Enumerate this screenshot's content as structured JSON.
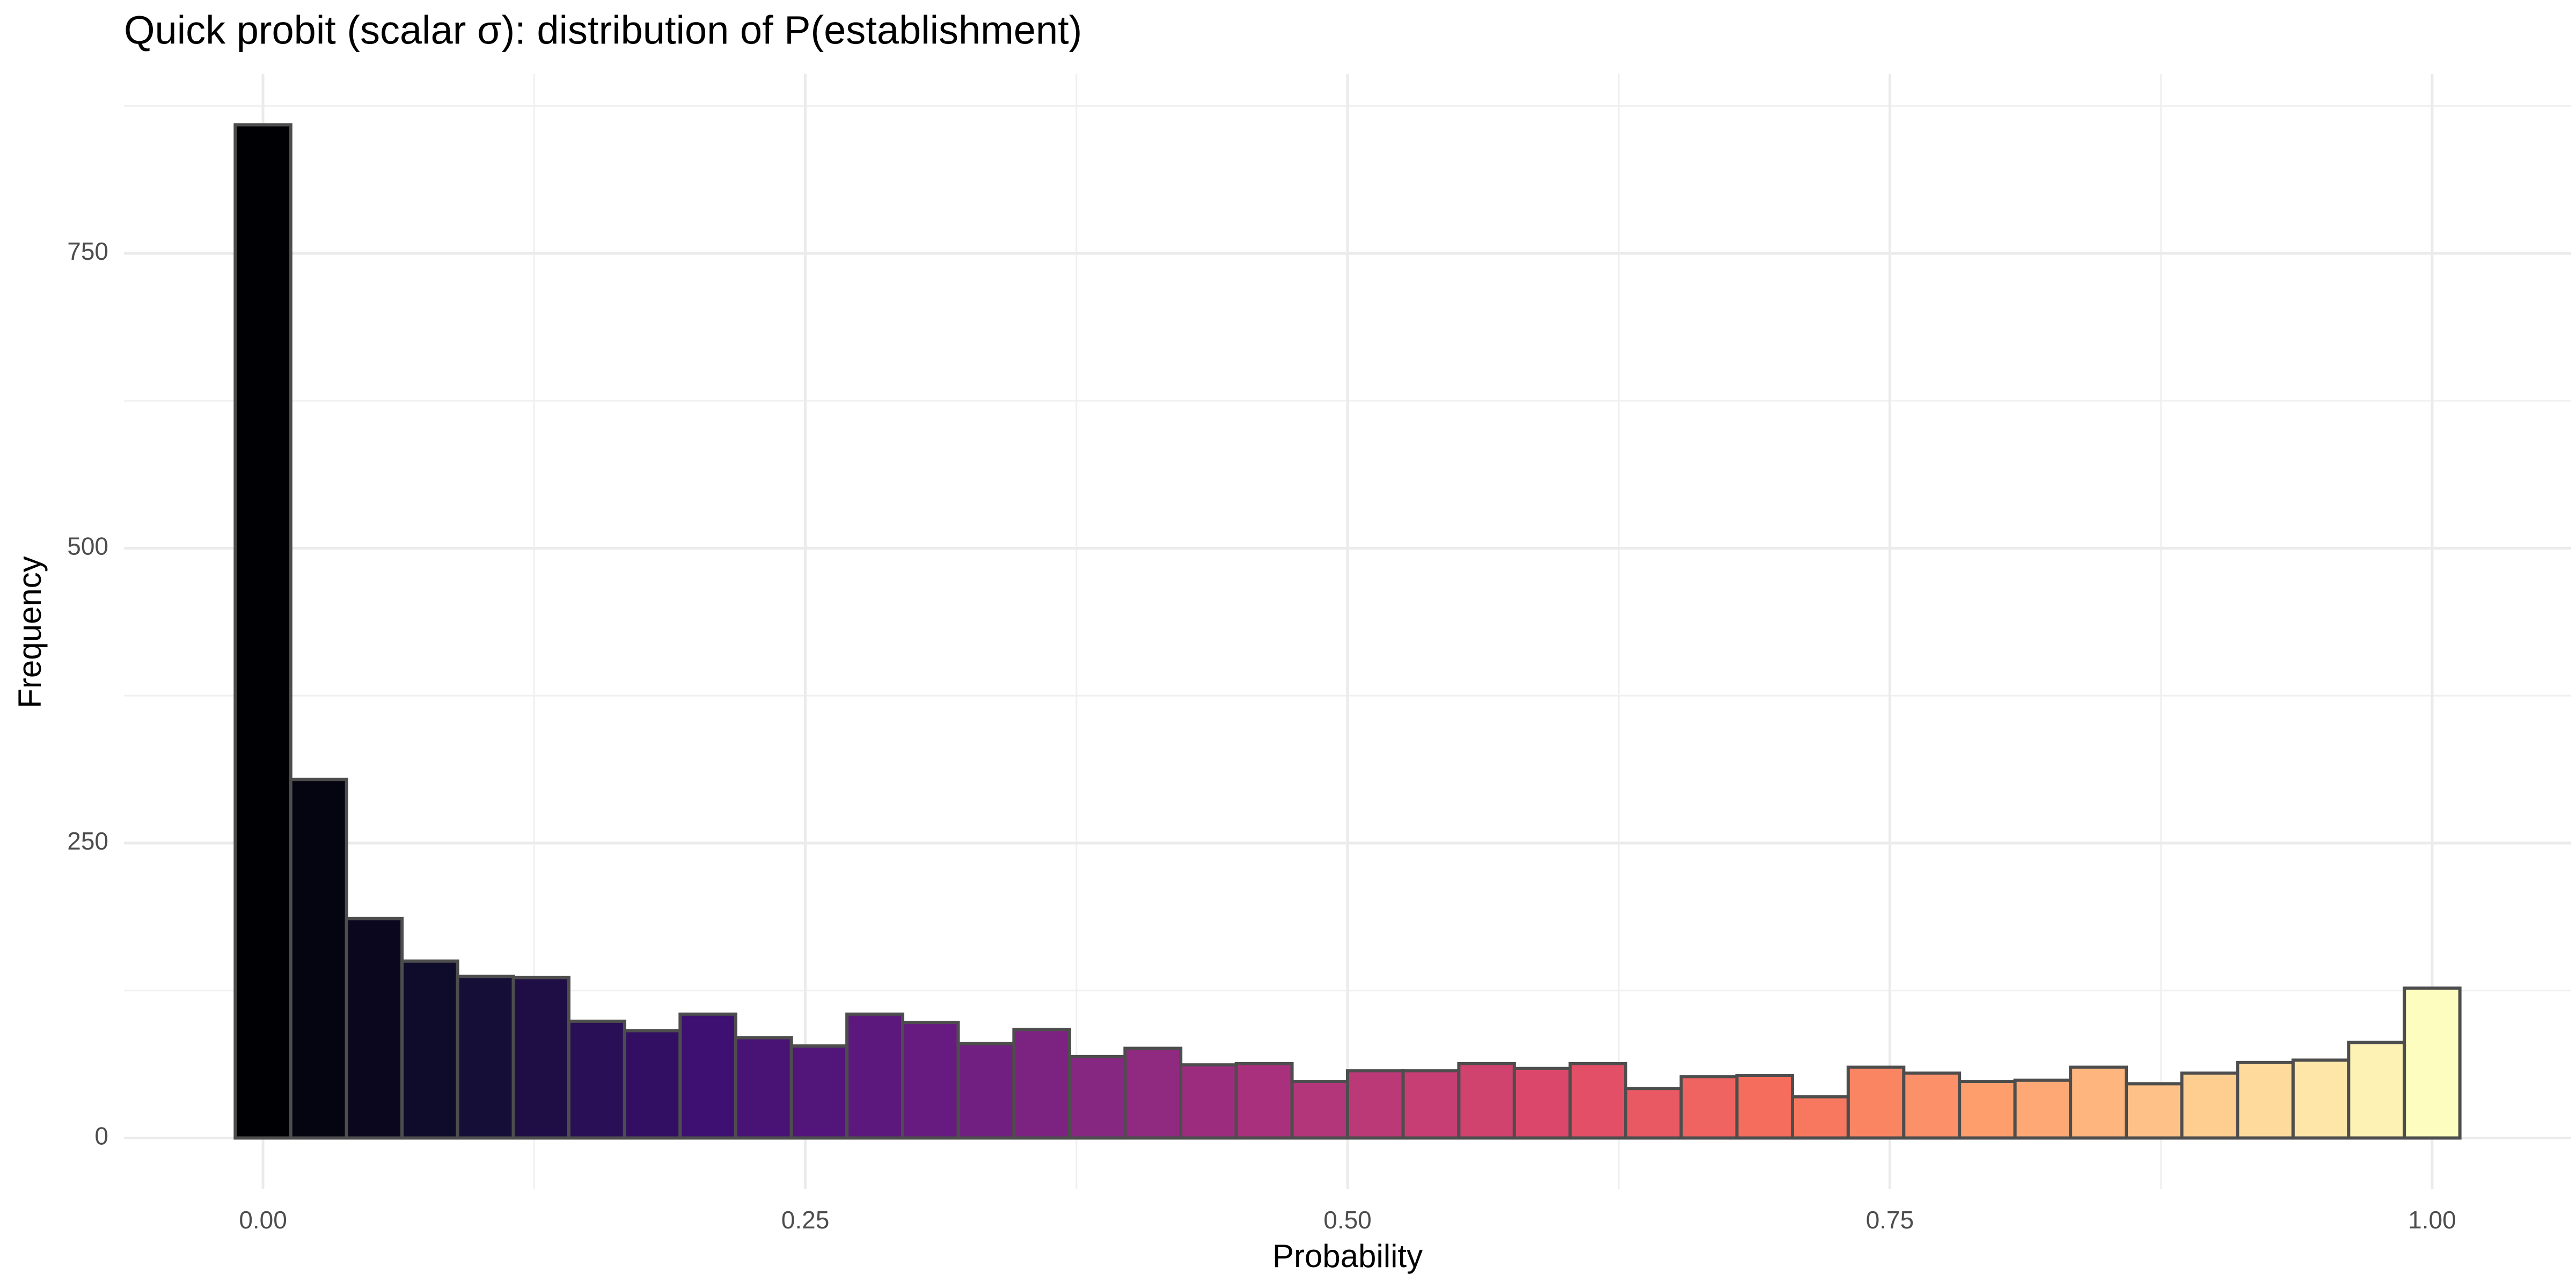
{
  "chart_data": {
    "type": "histogram",
    "title": "Quick probit (scalar σ): distribution of P(establishment)",
    "x_label": "Probability",
    "y_label": "Frequency",
    "bins": [
      -0.0128,
      0.0128,
      0.0385,
      0.0641,
      0.0897,
      0.1154,
      0.141,
      0.1667,
      0.1923,
      0.2179,
      0.2436,
      0.2692,
      0.2949,
      0.3205,
      0.3462,
      0.3718,
      0.3974,
      0.4231,
      0.4487,
      0.4744,
      0.5,
      0.5256,
      0.5513,
      0.5769,
      0.6026,
      0.6282,
      0.6538,
      0.6795,
      0.7051,
      0.7308,
      0.7564,
      0.7821,
      0.8077,
      0.8333,
      0.859,
      0.8846,
      0.9103,
      0.9359,
      0.9615,
      0.9872,
      1.0128
    ],
    "values": [
      859,
      304,
      186,
      150,
      137,
      136,
      99,
      91,
      105,
      85,
      78,
      105,
      98,
      80,
      92,
      69,
      76,
      62,
      63,
      48,
      57,
      57,
      63,
      59,
      63,
      42,
      52,
      53,
      35,
      60,
      55,
      48,
      49,
      60,
      46,
      55,
      64,
      66,
      81,
      127
    ],
    "colors": [
      "#000004",
      "#050411",
      "#0a071e",
      "#0f0b2b",
      "#150e37",
      "#1f0e46",
      "#290f55",
      "#330f64",
      "#3d1071",
      "#481375",
      "#521579",
      "#5c187d",
      "#671b80",
      "#711f80",
      "#7c2381",
      "#862781",
      "#902a80",
      "#9c2d7e",
      "#a9307c",
      "#b4367a",
      "#bc3977",
      "#c63e73",
      "#d0436e",
      "#da476a",
      "#e24f66",
      "#e85963",
      "#ef6360",
      "#f56d5d",
      "#f8785f",
      "#fa8563",
      "#fc9068",
      "#fe9e6c",
      "#fea975",
      "#feb57e",
      "#fec288",
      "#fece91",
      "#fedb9c",
      "#fde6a8",
      "#fdf1b3",
      "#fcfdbf"
    ],
    "edge_color": "#4d4d4d",
    "xlim": [
      -0.0641,
      1.0641
    ],
    "ylim": [
      -43,
      902
    ],
    "xticks": [
      {
        "value": 0,
        "label": "0.00"
      },
      {
        "value": 0.25,
        "label": "0.25"
      },
      {
        "value": 0.5,
        "label": "0.50"
      },
      {
        "value": 0.75,
        "label": "0.75"
      },
      {
        "value": 1,
        "label": "1.00"
      }
    ],
    "yticks": [
      0,
      250,
      500,
      750
    ],
    "x_minor_ticks": [
      0.125,
      0.375,
      0.625,
      0.875
    ],
    "y_minor_ticks": [
      125,
      375,
      625,
      875
    ],
    "grid": true
  }
}
